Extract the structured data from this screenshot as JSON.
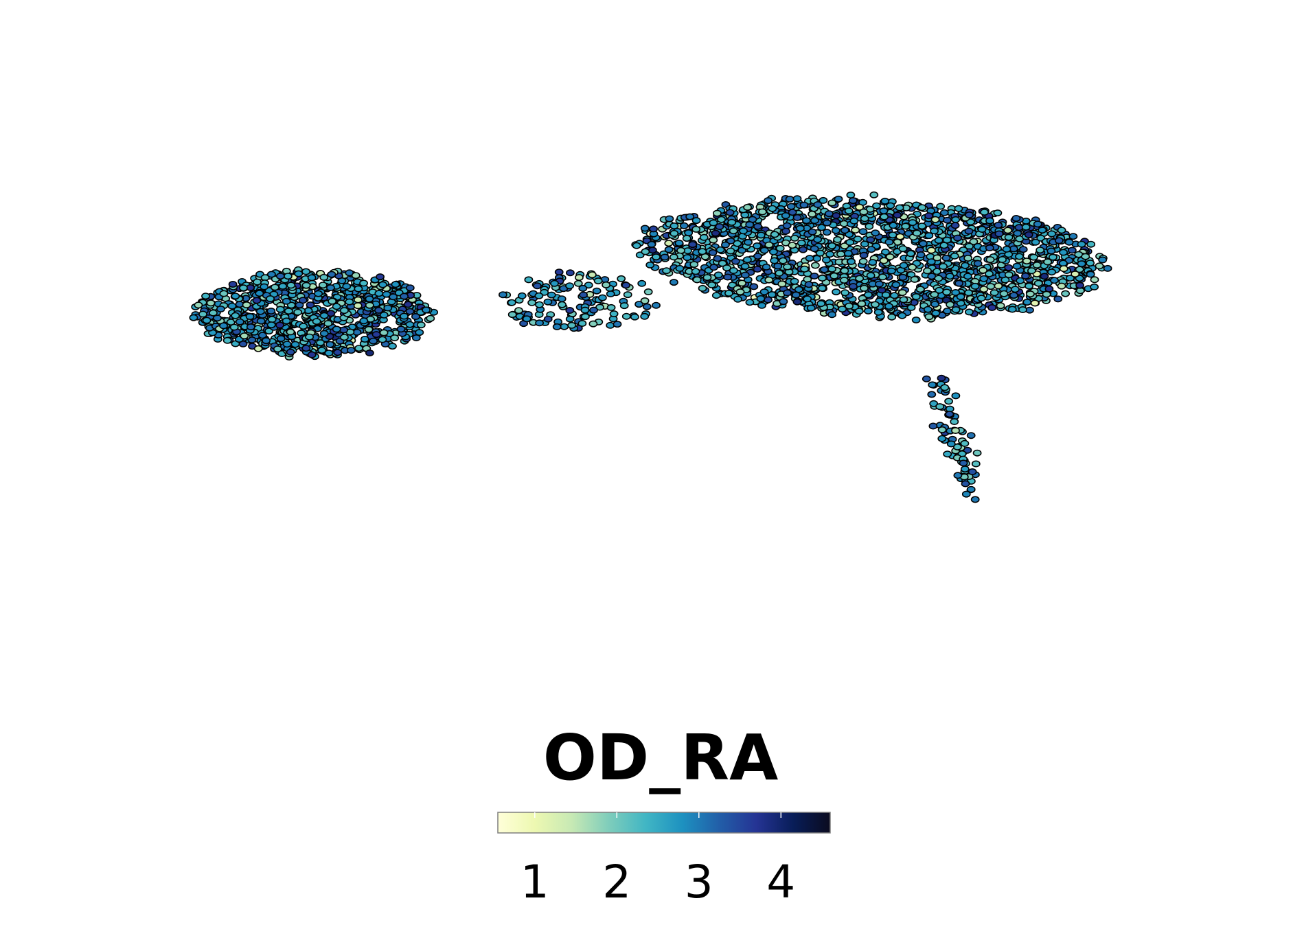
{
  "chart_data": {
    "type": "scatter",
    "title": "",
    "xlabel": "",
    "ylabel": "",
    "axes": "hidden",
    "grid": false,
    "colorbar": {
      "title": "OD_RA",
      "placement": "bottom-center",
      "orientation": "horizontal",
      "colormap": "YlGnBu",
      "range": [
        0.55,
        4.6
      ],
      "ticks": [
        1,
        2,
        3,
        4
      ],
      "tick_labels": [
        "1",
        "2",
        "3",
        "4"
      ],
      "stops": [
        "#ffffd9",
        "#edf8b1",
        "#c7e9b4",
        "#7fcdbb",
        "#41b6c4",
        "#1d91c0",
        "#225ea8",
        "#253494",
        "#081d58",
        "#0b0b1f"
      ]
    },
    "marker": {
      "shape": "circle",
      "edge_color": "#000000"
    },
    "value_distribution": {
      "mean": 2.65,
      "sd": 0.55
    },
    "clusters": [
      {
        "name": "left",
        "center": [
          -6.2,
          0.5
        ],
        "spread": [
          2.4,
          1.3
        ],
        "rotation": 0.0,
        "n_points": 900
      },
      {
        "name": "right",
        "center": [
          5.0,
          2.2
        ],
        "spread": [
          4.7,
          1.8
        ],
        "rotation": -0.07,
        "n_points": 1800
      },
      {
        "name": "bridge",
        "center": [
          -0.9,
          0.9
        ],
        "spread": [
          1.6,
          0.9
        ],
        "rotation": 0.0,
        "n_points": 130
      },
      {
        "name": "tail",
        "points_from": [
          6.2,
          -1.3
        ],
        "points_to": [
          7.1,
          -5.0
        ],
        "n_points": 80
      }
    ],
    "xlim": [
      -11,
      12
    ],
    "ylim": [
      -8,
      6
    ]
  }
}
